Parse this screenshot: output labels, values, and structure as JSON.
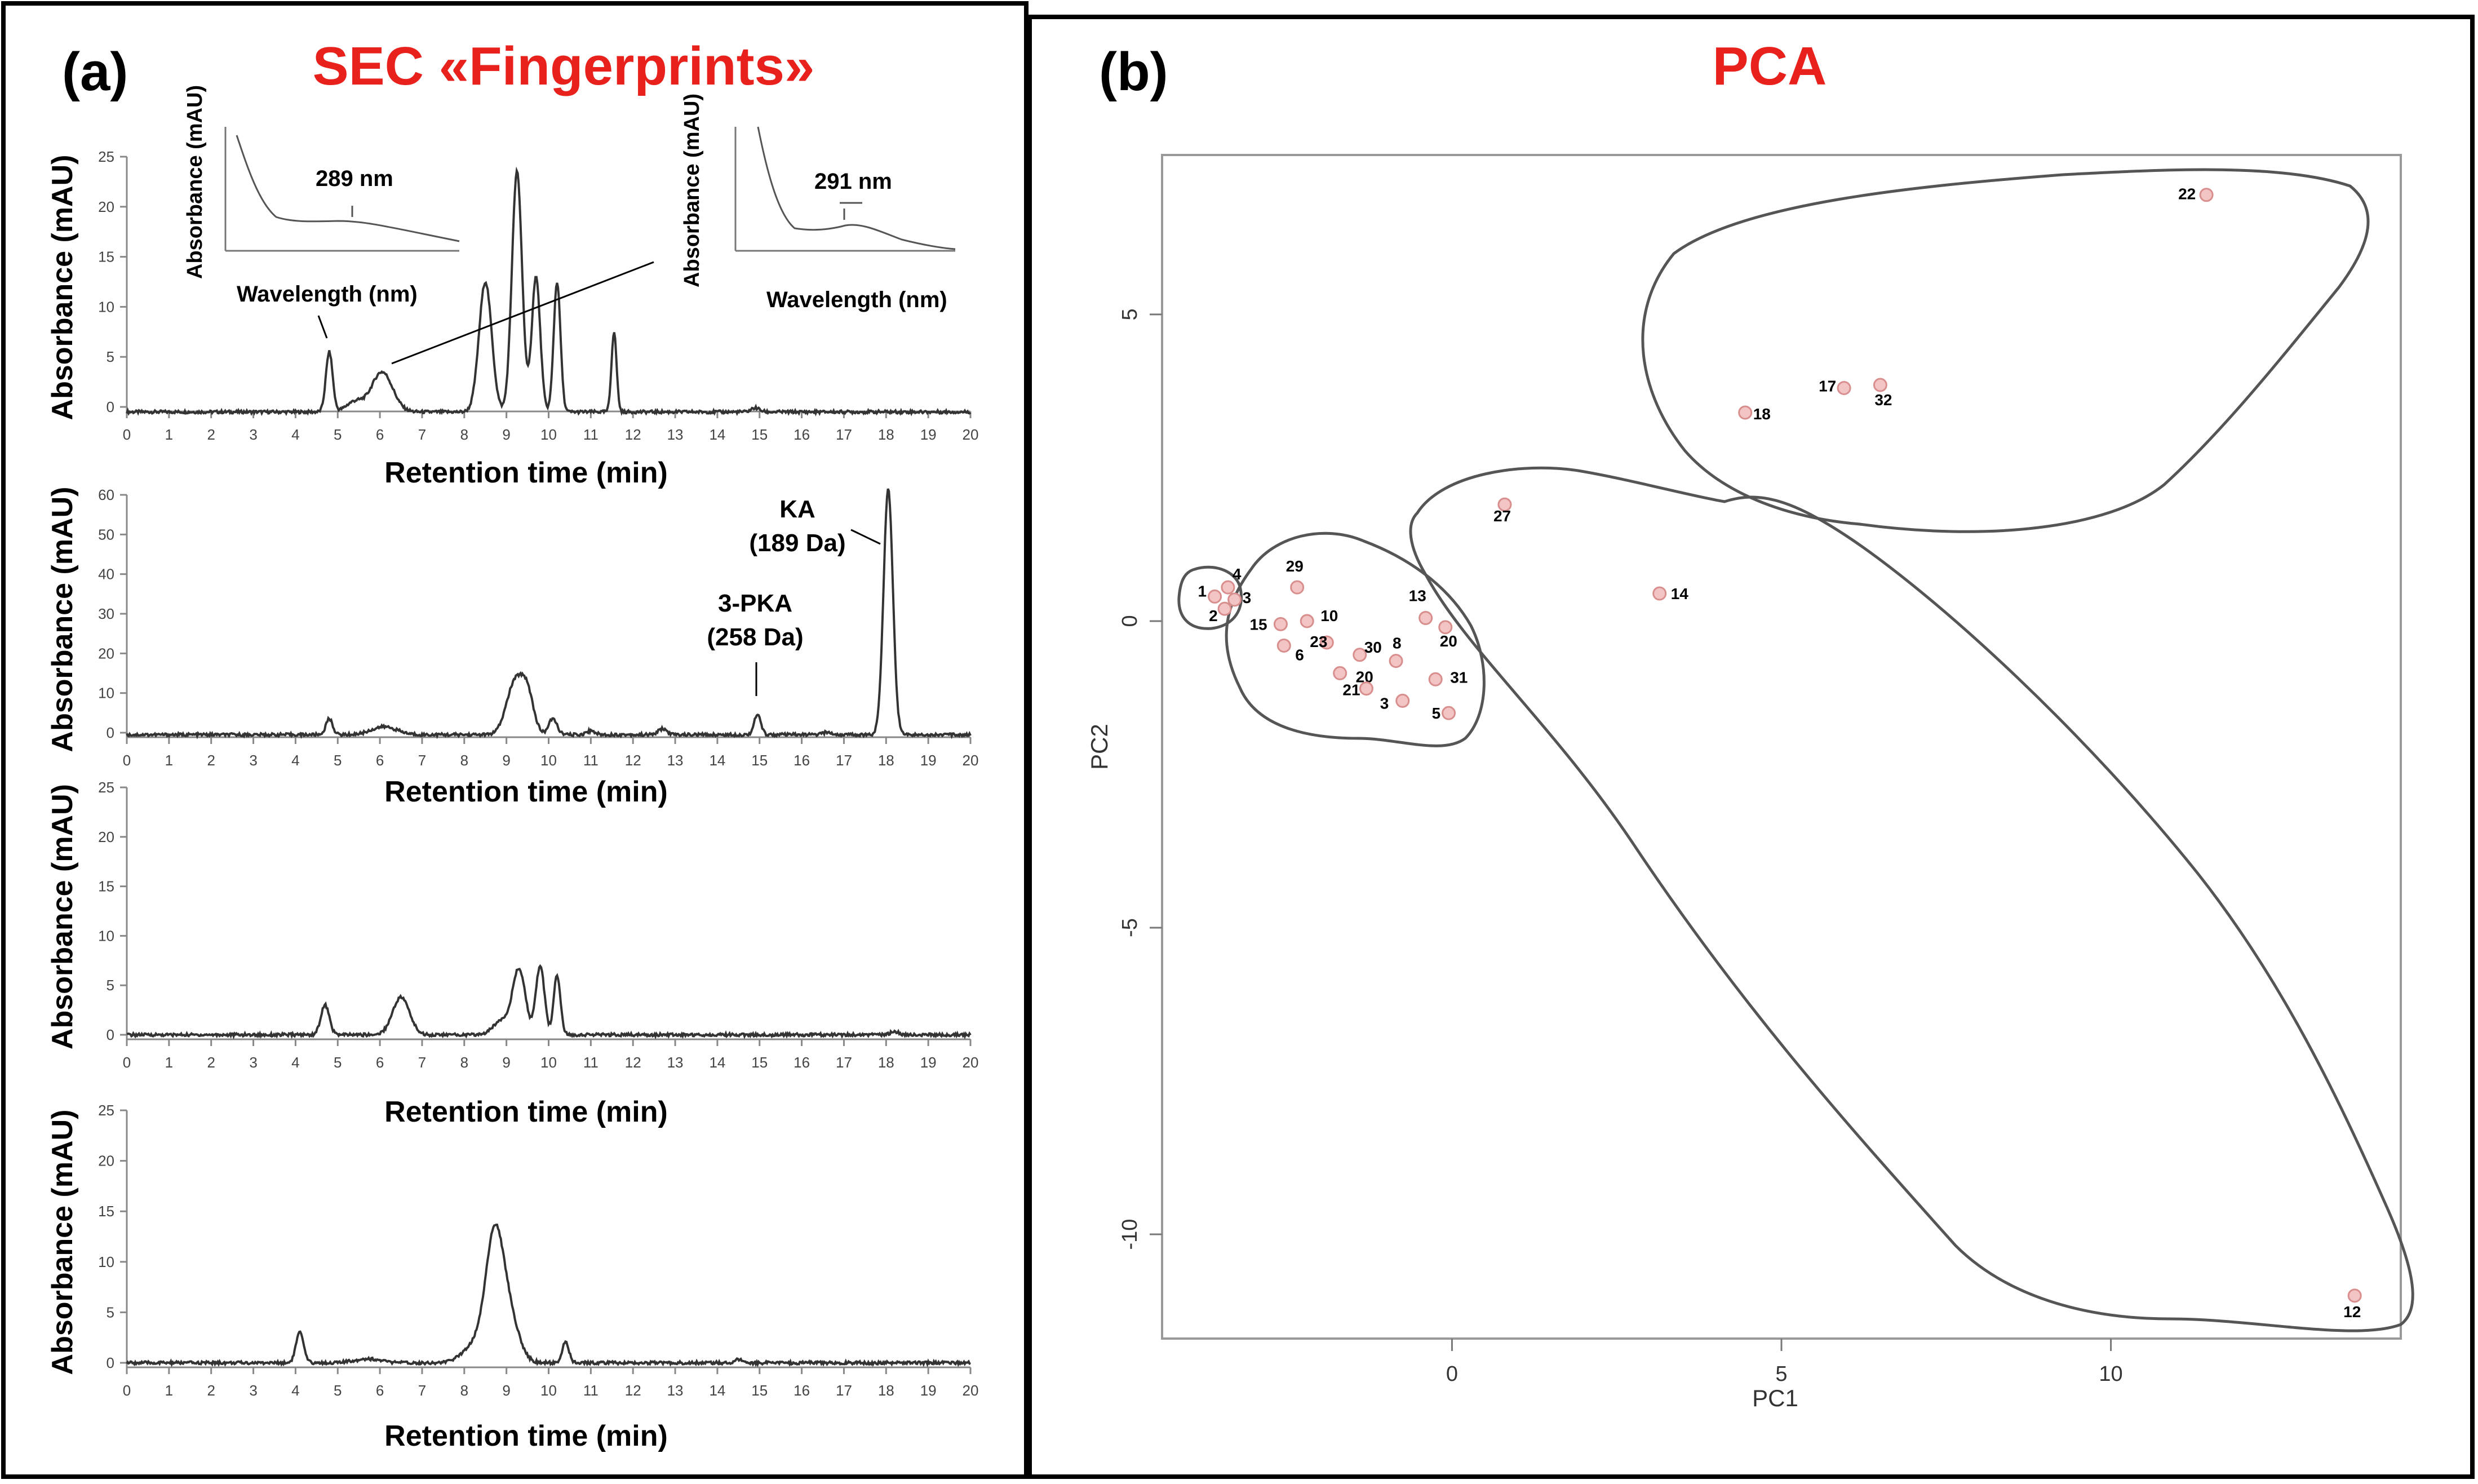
{
  "panel_a": {
    "letter": "(a)",
    "title": "SEC «Fingerprints»",
    "inset_left": {
      "ylabel": "Absorbance (mAU)",
      "xlabel": "Wavelength (nm)",
      "annotation": "289 nm"
    },
    "inset_right": {
      "ylabel": "Absorbance (mAU)",
      "xlabel": "Wavelength (nm)",
      "annotation": "291 nm"
    },
    "annotations": {
      "ka": "KA",
      "ka_mass": "(189 Da)",
      "pka": "3-PKA",
      "pka_mass": "(258 Da)"
    }
  },
  "panel_b": {
    "letter": "(b)",
    "title": "PCA"
  },
  "colors": {
    "title_red": "#e8211c",
    "trace": "#333333",
    "point_fill": "#f2c4c4",
    "point_stroke": "#d98e8e"
  },
  "chart_data": [
    {
      "type": "line",
      "id": "chrom1",
      "xlabel": "Retention time (min)",
      "ylabel": "Absorbance (mAU)",
      "xlim": [
        0,
        20
      ],
      "ylim": [
        0,
        25
      ],
      "xticks": [
        "0",
        "1",
        "2",
        "3",
        "4",
        "5",
        "6",
        "7",
        "8",
        "9",
        "10",
        "11",
        "12",
        "13",
        "14",
        "15",
        "16",
        "17",
        "18",
        "19",
        "20"
      ],
      "yticks": [
        "0",
        "5",
        "10",
        "15",
        "20",
        "25"
      ],
      "baseline": -0.5,
      "peaks": [
        [
          4.8,
          6,
          0.08
        ],
        [
          5.4,
          1,
          0.2
        ],
        [
          6.05,
          4,
          0.25
        ],
        [
          8.5,
          13,
          0.15
        ],
        [
          9.25,
          24,
          0.12
        ],
        [
          9.7,
          13.5,
          0.1
        ],
        [
          10.2,
          13,
          0.08
        ],
        [
          11.55,
          8,
          0.06
        ],
        [
          14.9,
          0.4,
          0.1
        ]
      ]
    },
    {
      "type": "line",
      "id": "chrom2",
      "xlabel": "Retention time (min)",
      "ylabel": "Absorbance (mAU)",
      "xlim": [
        0,
        20
      ],
      "ylim": [
        0,
        60
      ],
      "xticks": [
        "0",
        "1",
        "2",
        "3",
        "4",
        "5",
        "6",
        "7",
        "8",
        "9",
        "10",
        "11",
        "12",
        "13",
        "14",
        "15",
        "16",
        "17",
        "18",
        "19",
        "20"
      ],
      "yticks": [
        "0",
        "10",
        "20",
        "30",
        "40",
        "50",
        "60"
      ],
      "baseline": -0.5,
      "peaks": [
        [
          4.8,
          4,
          0.08
        ],
        [
          6.1,
          2,
          0.3
        ],
        [
          9.2,
          13,
          0.2
        ],
        [
          9.5,
          9,
          0.15
        ],
        [
          10.1,
          4,
          0.1
        ],
        [
          11,
          1,
          0.1
        ],
        [
          12.7,
          1.5,
          0.1
        ],
        [
          14.95,
          5,
          0.08
        ],
        [
          16.6,
          0.6,
          0.1
        ],
        [
          18.05,
          62,
          0.11
        ]
      ]
    },
    {
      "type": "line",
      "id": "chrom3",
      "xlabel": "Retention time (min)",
      "ylabel": "Absorbance (mAU)",
      "xlim": [
        0,
        20
      ],
      "ylim": [
        0,
        25
      ],
      "xticks": [
        "0",
        "1",
        "2",
        "3",
        "4",
        "5",
        "6",
        "7",
        "8",
        "9",
        "10",
        "11",
        "12",
        "13",
        "14",
        "15",
        "16",
        "17",
        "18",
        "19",
        "20"
      ],
      "yticks": [
        "0",
        "5",
        "10",
        "15",
        "20",
        "25"
      ],
      "baseline": 0,
      "peaks": [
        [
          4.7,
          3,
          0.1
        ],
        [
          6.5,
          3.8,
          0.2
        ],
        [
          9.3,
          6.5,
          0.15
        ],
        [
          9.8,
          7,
          0.1
        ],
        [
          10.2,
          6,
          0.08
        ],
        [
          8.9,
          1.5,
          0.2
        ],
        [
          18.2,
          0.3,
          0.1
        ]
      ]
    },
    {
      "type": "line",
      "id": "chrom4",
      "xlabel": "Retention time (min)",
      "ylabel": "Absorbance (mAU)",
      "xlim": [
        0,
        20
      ],
      "ylim": [
        0,
        25
      ],
      "xticks": [
        "0",
        "1",
        "2",
        "3",
        "4",
        "5",
        "6",
        "7",
        "8",
        "9",
        "10",
        "11",
        "12",
        "13",
        "14",
        "15",
        "16",
        "17",
        "18",
        "19",
        "20"
      ],
      "yticks": [
        "0",
        "5",
        "10",
        "15",
        "20",
        "25"
      ],
      "baseline": 0,
      "peaks": [
        [
          4.1,
          3,
          0.09
        ],
        [
          5.7,
          0.4,
          0.3
        ],
        [
          8.7,
          10,
          0.2
        ],
        [
          9.0,
          5.5,
          0.25
        ],
        [
          8.3,
          2,
          0.3
        ],
        [
          10.4,
          2,
          0.08
        ],
        [
          14.5,
          0.3,
          0.1
        ]
      ]
    },
    {
      "type": "scatter",
      "id": "pca",
      "xlabel": "PC1",
      "ylabel": "PC2",
      "xlim": [
        -4.4,
        14.4
      ],
      "ylim": [
        -11.7,
        7.6
      ],
      "xticks": [
        "0",
        "5",
        "10"
      ],
      "yticks": [
        "-10",
        "-5",
        "0",
        "5"
      ],
      "points": [
        {
          "label": "1",
          "x": -3.6,
          "y": 0.4
        },
        {
          "label": "4",
          "x": -3.4,
          "y": 0.55
        },
        {
          "label": "3",
          "x": -3.3,
          "y": 0.35
        },
        {
          "label": "2",
          "x": -3.45,
          "y": 0.2
        },
        {
          "label": "29",
          "x": -2.35,
          "y": 0.55
        },
        {
          "label": "15",
          "x": -2.6,
          "y": -0.05
        },
        {
          "label": "10",
          "x": -2.2,
          "y": 0.0
        },
        {
          "label": "23",
          "x": -1.9,
          "y": -0.35
        },
        {
          "label": "6",
          "x": -2.55,
          "y": -0.4
        },
        {
          "label": "30",
          "x": -1.4,
          "y": -0.55
        },
        {
          "label": "20",
          "x": -1.7,
          "y": -0.85
        },
        {
          "label": "21",
          "x": -1.3,
          "y": -1.1
        },
        {
          "label": "3",
          "x": -0.75,
          "y": -1.3
        },
        {
          "label": "31",
          "x": -0.25,
          "y": -0.95
        },
        {
          "label": "8",
          "x": -0.85,
          "y": -0.65
        },
        {
          "label": "13",
          "x": -0.4,
          "y": 0.05
        },
        {
          "label": "20",
          "x": -0.1,
          "y": -0.1
        },
        {
          "label": "5",
          "x": -0.05,
          "y": -1.5
        },
        {
          "label": "27",
          "x": 0.8,
          "y": 1.9
        },
        {
          "label": "14",
          "x": 3.15,
          "y": 0.45
        },
        {
          "label": "18",
          "x": 4.45,
          "y": 3.4
        },
        {
          "label": "17",
          "x": 5.95,
          "y": 3.8
        },
        {
          "label": "32",
          "x": 6.5,
          "y": 3.85
        },
        {
          "label": "22",
          "x": 11.45,
          "y": 6.95
        },
        {
          "label": "12",
          "x": 13.7,
          "y": -11.0
        }
      ]
    }
  ]
}
